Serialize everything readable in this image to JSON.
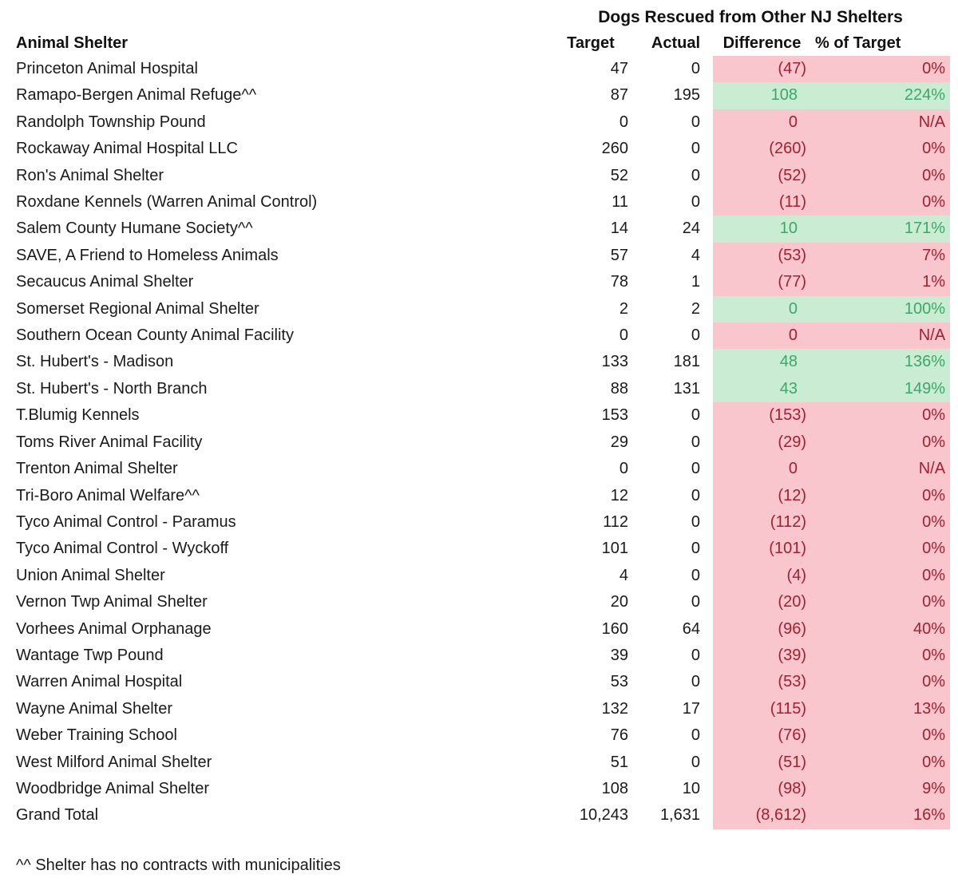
{
  "title": "Dogs Rescued from Other NJ Shelters",
  "footnote": "^^ Shelter has no contracts with municipalities",
  "colors": {
    "bad_bg": "#F8C6CC",
    "bad_text": "#A41F30",
    "good_bg": "#C9ECD3",
    "good_text": "#3EA66A"
  },
  "table": {
    "columns": [
      "Animal Shelter",
      "Target",
      "Actual",
      "Difference",
      "% of Target"
    ],
    "rows": [
      {
        "name": "Princeton Animal Hospital",
        "target": "47",
        "actual": "0",
        "difference": "(47)",
        "pct_of_target": "0%",
        "status": "bad"
      },
      {
        "name": "Ramapo-Bergen Animal Refuge^^",
        "target": "87",
        "actual": "195",
        "difference": "108",
        "pct_of_target": "224%",
        "status": "good"
      },
      {
        "name": "Randolph Township Pound",
        "target": "0",
        "actual": "0",
        "difference": "0",
        "pct_of_target": "N/A",
        "status": "bad"
      },
      {
        "name": "Rockaway Animal Hospital LLC",
        "target": "260",
        "actual": "0",
        "difference": "(260)",
        "pct_of_target": "0%",
        "status": "bad"
      },
      {
        "name": "Ron's Animal Shelter",
        "target": "52",
        "actual": "0",
        "difference": "(52)",
        "pct_of_target": "0%",
        "status": "bad"
      },
      {
        "name": "Roxdane Kennels (Warren Animal Control)",
        "target": "11",
        "actual": "0",
        "difference": "(11)",
        "pct_of_target": "0%",
        "status": "bad"
      },
      {
        "name": "Salem County Humane Society^^",
        "target": "14",
        "actual": "24",
        "difference": "10",
        "pct_of_target": "171%",
        "status": "good"
      },
      {
        "name": "SAVE, A Friend to Homeless Animals",
        "target": "57",
        "actual": "4",
        "difference": "(53)",
        "pct_of_target": "7%",
        "status": "bad"
      },
      {
        "name": "Secaucus Animal Shelter",
        "target": "78",
        "actual": "1",
        "difference": "(77)",
        "pct_of_target": "1%",
        "status": "bad"
      },
      {
        "name": "Somerset Regional Animal Shelter",
        "target": "2",
        "actual": "2",
        "difference": "0",
        "pct_of_target": "100%",
        "status": "good"
      },
      {
        "name": "Southern Ocean County Animal Facility",
        "target": "0",
        "actual": "0",
        "difference": "0",
        "pct_of_target": "N/A",
        "status": "bad"
      },
      {
        "name": "St. Hubert's - Madison",
        "target": "133",
        "actual": "181",
        "difference": "48",
        "pct_of_target": "136%",
        "status": "good"
      },
      {
        "name": "St. Hubert's - North Branch",
        "target": "88",
        "actual": "131",
        "difference": "43",
        "pct_of_target": "149%",
        "status": "good"
      },
      {
        "name": "T.Blumig Kennels",
        "target": "153",
        "actual": "0",
        "difference": "(153)",
        "pct_of_target": "0%",
        "status": "bad"
      },
      {
        "name": "Toms River Animal Facility",
        "target": "29",
        "actual": "0",
        "difference": "(29)",
        "pct_of_target": "0%",
        "status": "bad"
      },
      {
        "name": "Trenton Animal Shelter",
        "target": "0",
        "actual": "0",
        "difference": "0",
        "pct_of_target": "N/A",
        "status": "bad"
      },
      {
        "name": "Tri-Boro Animal Welfare^^",
        "target": "12",
        "actual": "0",
        "difference": "(12)",
        "pct_of_target": "0%",
        "status": "bad"
      },
      {
        "name": "Tyco Animal Control - Paramus",
        "target": "112",
        "actual": "0",
        "difference": "(112)",
        "pct_of_target": "0%",
        "status": "bad"
      },
      {
        "name": "Tyco Animal Control - Wyckoff",
        "target": "101",
        "actual": "0",
        "difference": "(101)",
        "pct_of_target": "0%",
        "status": "bad"
      },
      {
        "name": "Union Animal Shelter",
        "target": "4",
        "actual": "0",
        "difference": "(4)",
        "pct_of_target": "0%",
        "status": "bad"
      },
      {
        "name": "Vernon Twp Animal Shelter",
        "target": "20",
        "actual": "0",
        "difference": "(20)",
        "pct_of_target": "0%",
        "status": "bad"
      },
      {
        "name": "Vorhees Animal Orphanage",
        "target": "160",
        "actual": "64",
        "difference": "(96)",
        "pct_of_target": "40%",
        "status": "bad"
      },
      {
        "name": "Wantage Twp Pound",
        "target": "39",
        "actual": "0",
        "difference": "(39)",
        "pct_of_target": "0%",
        "status": "bad"
      },
      {
        "name": "Warren Animal Hospital",
        "target": "53",
        "actual": "0",
        "difference": "(53)",
        "pct_of_target": "0%",
        "status": "bad"
      },
      {
        "name": "Wayne Animal Shelter",
        "target": "132",
        "actual": "17",
        "difference": "(115)",
        "pct_of_target": "13%",
        "status": "bad"
      },
      {
        "name": "Weber Training School",
        "target": "76",
        "actual": "0",
        "difference": "(76)",
        "pct_of_target": "0%",
        "status": "bad"
      },
      {
        "name": "West Milford Animal Shelter",
        "target": "51",
        "actual": "0",
        "difference": "(51)",
        "pct_of_target": "0%",
        "status": "bad"
      },
      {
        "name": "Woodbridge Animal Shelter",
        "target": "108",
        "actual": "10",
        "difference": "(98)",
        "pct_of_target": "9%",
        "status": "bad"
      },
      {
        "name": "Grand Total",
        "target": "10,243",
        "actual": "1,631",
        "difference": "(8,612)",
        "pct_of_target": "16%",
        "status": "bad"
      }
    ]
  }
}
